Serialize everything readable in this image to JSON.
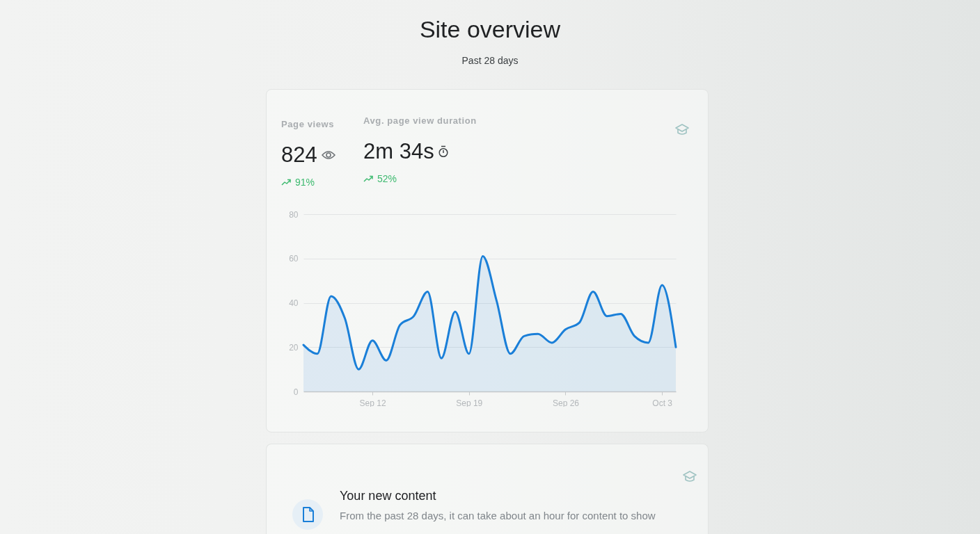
{
  "chart_data": {
    "type": "area",
    "title": "Site overview",
    "subtitle": "Past 28 days",
    "annotations": [
      "Page views",
      "824",
      "91%",
      "Avg. page view duration",
      "2m 34s",
      "52%",
      "Your new content",
      "From the past 28 days, it can take about an hour for content to show"
    ],
    "x": [
      "--09-07",
      "--09-08",
      "--09-09",
      "--09-10",
      "--09-11",
      "--09-12",
      "--09-13",
      "--09-14",
      "--09-15",
      "--09-16",
      "--09-17",
      "--09-18",
      "--09-19",
      "--09-20",
      "--09-21",
      "--09-22",
      "--09-23",
      "--09-24",
      "--09-25",
      "--09-26",
      "--09-27",
      "--09-28",
      "--09-29",
      "--09-30",
      "--10-01",
      "--10-02",
      "--10-03",
      "--10-04"
    ],
    "series": [
      {
        "color": "#1a7fd8",
        "values": [
          21,
          17,
          43,
          33,
          10,
          23,
          14,
          30,
          34,
          45,
          15,
          36,
          17,
          61,
          41,
          17,
          25,
          26,
          22,
          28,
          31,
          45,
          34,
          35,
          25,
          22,
          48,
          20
        ]
      }
    ],
    "xlim": [
      "--09-07",
      "--10-04"
    ],
    "xticks": [
      {
        "value": "--09-12",
        "label": "Sep 12"
      },
      {
        "value": "--09-19",
        "label": "Sep 19"
      },
      {
        "value": "--09-26",
        "label": "Sep 26"
      },
      {
        "value": "--10-03",
        "label": "Oct 3"
      }
    ],
    "ylim": [
      0,
      80
    ],
    "yticks": [
      0,
      20,
      40,
      60,
      80
    ],
    "grid": "y"
  }
}
